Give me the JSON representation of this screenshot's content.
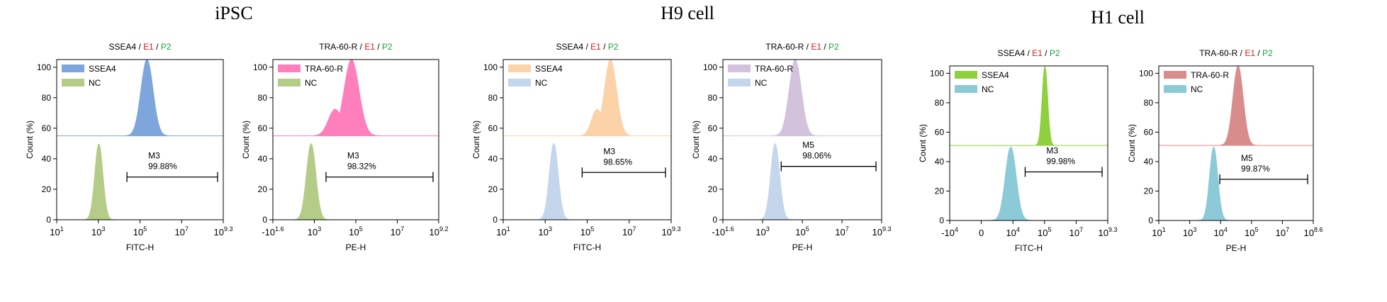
{
  "groups": [
    {
      "title": "iPSC"
    },
    {
      "title": "H9 cell"
    },
    {
      "title": "H1 cell"
    }
  ],
  "chart_data": [
    {
      "type": "area",
      "group": "iPSC",
      "title_parts": [
        {
          "text": "SSEA4",
          "color": "#000000"
        },
        {
          "text": " / ",
          "color": "#000000"
        },
        {
          "text": "E1",
          "color": "#e0161b"
        },
        {
          "text": " / ",
          "color": "#000000"
        },
        {
          "text": "P2",
          "color": "#18a33a"
        }
      ],
      "xlabel": "FITC-H",
      "ylabel": "Count (%)",
      "x_ticks": [
        {
          "b": "10",
          "e": "1"
        },
        {
          "b": "10",
          "e": "3"
        },
        {
          "b": "10",
          "e": "5"
        },
        {
          "b": "10",
          "e": "7"
        },
        {
          "b": "10",
          "e": "9.3"
        }
      ],
      "xlim": [
        1,
        9.3
      ],
      "y_ticks": [
        "0",
        "20",
        "40",
        "60",
        "80",
        "100"
      ],
      "ylim": [
        0,
        105
      ],
      "series": [
        {
          "name": "SSEA4",
          "color": "#7ea6dc",
          "offset": 55,
          "center": 5.5,
          "sigma": 0.3,
          "peak": 105
        },
        {
          "name": "NC",
          "color": "#b4cc88",
          "offset": 0,
          "center": 3.1,
          "sigma": 0.2,
          "peak": 50
        }
      ],
      "marker": {
        "name": "M3",
        "percent": "99.88%",
        "x_start": 4.5,
        "x_end": 9.3,
        "y": 28
      }
    },
    {
      "type": "area",
      "group": "iPSC",
      "title_parts": [
        {
          "text": "TRA-60-R",
          "color": "#000000"
        },
        {
          "text": " / ",
          "color": "#000000"
        },
        {
          "text": "E1",
          "color": "#e0161b"
        },
        {
          "text": " / ",
          "color": "#000000"
        },
        {
          "text": "P2",
          "color": "#18a33a"
        }
      ],
      "xlabel": "PE-H",
      "ylabel": "Count (%)",
      "x_ticks": [
        {
          "b": "-10",
          "e": "1.6"
        },
        {
          "b": "10",
          "e": "3"
        },
        {
          "b": "10",
          "e": "5"
        },
        {
          "b": "10",
          "e": "7"
        },
        {
          "b": "10",
          "e": "9.2"
        }
      ],
      "xlim": [
        1.4,
        9.2
      ],
      "y_ticks": [
        "0",
        "20",
        "40",
        "60",
        "80",
        "100"
      ],
      "ylim": [
        0,
        105
      ],
      "series": [
        {
          "name": "TRA-60-R",
          "color": "#ff7fbd",
          "offset": 55,
          "center": 5.1,
          "sigma": 0.35,
          "peak": 105,
          "shoulder": true
        },
        {
          "name": "NC",
          "color": "#b4cc88",
          "offset": 0,
          "center": 3.2,
          "sigma": 0.22,
          "peak": 50
        }
      ],
      "marker": {
        "name": "M3",
        "percent": "98.32%",
        "x_start": 3.9,
        "x_end": 9.2,
        "y": 28
      }
    },
    {
      "type": "area",
      "group": "H9 cell",
      "title_parts": [
        {
          "text": "SSEA4",
          "color": "#000000"
        },
        {
          "text": " / ",
          "color": "#000000"
        },
        {
          "text": "E1",
          "color": "#e0161b"
        },
        {
          "text": " / ",
          "color": "#000000"
        },
        {
          "text": "P2",
          "color": "#18a33a"
        }
      ],
      "xlabel": "FITC-H",
      "ylabel": "Count (%)",
      "x_ticks": [
        {
          "b": "10",
          "e": "1"
        },
        {
          "b": "10",
          "e": "3"
        },
        {
          "b": "10",
          "e": "5"
        },
        {
          "b": "10",
          "e": "7"
        },
        {
          "b": "10",
          "e": "9.3"
        }
      ],
      "xlim": [
        1,
        9.3
      ],
      "y_ticks": [
        "0",
        "20",
        "40",
        "60",
        "80",
        "100"
      ],
      "ylim": [
        0,
        105
      ],
      "series": [
        {
          "name": "SSEA4",
          "color": "#fcd2a8",
          "offset": 55,
          "center": 6.3,
          "sigma": 0.3,
          "peak": 105,
          "shoulder": true
        },
        {
          "name": "NC",
          "color": "#c4d6ec",
          "offset": 0,
          "center": 3.5,
          "sigma": 0.22,
          "peak": 50
        }
      ],
      "marker": {
        "name": "M3",
        "percent": "98.65%",
        "x_start": 4.9,
        "x_end": 9.3,
        "y": 31
      }
    },
    {
      "type": "area",
      "group": "H9 cell",
      "title_parts": [
        {
          "text": "TRA-60-R",
          "color": "#000000"
        },
        {
          "text": " / ",
          "color": "#000000"
        },
        {
          "text": "E1",
          "color": "#e0161b"
        },
        {
          "text": " / ",
          "color": "#000000"
        },
        {
          "text": "P2",
          "color": "#18a33a"
        }
      ],
      "xlabel": "PE-H",
      "ylabel": "Count (%)",
      "x_ticks": [
        {
          "b": "-10",
          "e": "1.6"
        },
        {
          "b": "10",
          "e": "3"
        },
        {
          "b": "10",
          "e": "5"
        },
        {
          "b": "10",
          "e": "7"
        },
        {
          "b": "10",
          "e": "9.3"
        }
      ],
      "xlim": [
        1.4,
        9.3
      ],
      "y_ticks": [
        "0",
        "20",
        "40",
        "60",
        "80",
        "100"
      ],
      "ylim": [
        0,
        105
      ],
      "series": [
        {
          "name": "TRA-60-R",
          "color": "#d2c2dc",
          "offset": 55,
          "center": 5.0,
          "sigma": 0.3,
          "peak": 105
        },
        {
          "name": "NC",
          "color": "#c4d6ec",
          "offset": 0,
          "center": 4.0,
          "sigma": 0.22,
          "peak": 50
        }
      ],
      "marker": {
        "name": "M5",
        "percent": "98.06%",
        "x_start": 4.3,
        "x_end": 9.3,
        "y": 35
      }
    },
    {
      "type": "area",
      "group": "H1 cell",
      "title_parts": [
        {
          "text": "SSEA4",
          "color": "#000000"
        },
        {
          "text": " / ",
          "color": "#000000"
        },
        {
          "text": "E1",
          "color": "#e0161b"
        },
        {
          "text": " / ",
          "color": "#000000"
        },
        {
          "text": "P2",
          "color": "#18a33a"
        }
      ],
      "xlabel": "FITC-H",
      "ylabel": "Count (%)",
      "x_ticks": [
        {
          "b": "-10",
          "e": "4"
        },
        {
          "b": "0",
          "e": ""
        },
        {
          "b": "10",
          "e": "4"
        },
        {
          "b": "10",
          "e": "5"
        },
        {
          "b": "10",
          "e": "7"
        },
        {
          "b": "10",
          "e": "9.3"
        }
      ],
      "xlim": [
        0.5,
        9.3
      ],
      "y_ticks": [
        "0",
        "20",
        "40",
        "60",
        "80",
        "100"
      ],
      "ylim": [
        0,
        105
      ],
      "series": [
        {
          "name": "SSEA4",
          "color": "#8fd03f",
          "offset": 51,
          "center": 5.8,
          "sigma": 0.15,
          "peak": 105
        },
        {
          "name": "NC",
          "color": "#8dcad8",
          "offset": 0,
          "center": 3.9,
          "sigma": 0.3,
          "peak": 50
        }
      ],
      "marker": {
        "name": "M3",
        "percent": "99.98%",
        "x_start": 4.7,
        "x_end": 9.3,
        "y": 33
      }
    },
    {
      "type": "area",
      "group": "H1 cell",
      "title_parts": [
        {
          "text": "TRA-60-R",
          "color": "#000000"
        },
        {
          "text": " / ",
          "color": "#000000"
        },
        {
          "text": "E1",
          "color": "#e0161b"
        },
        {
          "text": " / ",
          "color": "#000000"
        },
        {
          "text": "P2",
          "color": "#18a33a"
        }
      ],
      "xlabel": "PE-H",
      "ylabel": "Count (%)",
      "x_ticks": [
        {
          "b": "10",
          "e": "1"
        },
        {
          "b": "10",
          "e": "3"
        },
        {
          "b": "10",
          "e": "4"
        },
        {
          "b": "10",
          "e": "5"
        },
        {
          "b": "10",
          "e": "7"
        },
        {
          "b": "10",
          "e": "8.6"
        }
      ],
      "xlim": [
        1,
        8.6
      ],
      "y_ticks": [
        "0",
        "20",
        "40",
        "60",
        "80",
        "100"
      ],
      "ylim": [
        0,
        105
      ],
      "series": [
        {
          "name": "TRA-60-R",
          "color": "#d98c8c",
          "offset": 51,
          "center": 4.9,
          "sigma": 0.25,
          "peak": 105
        },
        {
          "name": "NC",
          "color": "#8dcad8",
          "offset": 0,
          "center": 3.7,
          "sigma": 0.2,
          "peak": 50
        }
      ],
      "marker": {
        "name": "M5",
        "percent": "99.87%",
        "x_start": 4.0,
        "x_end": 8.6,
        "y": 28
      }
    }
  ]
}
